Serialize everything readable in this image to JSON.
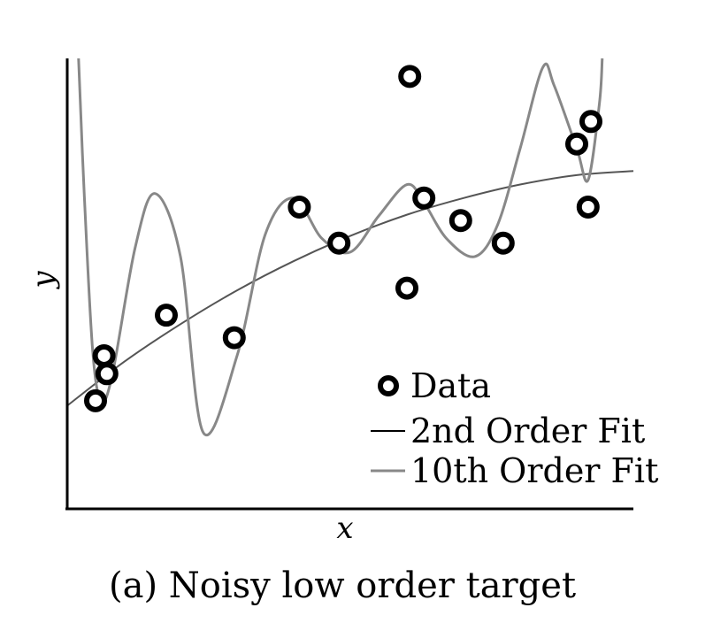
{
  "chart_data": {
    "type": "scatter",
    "title": "",
    "caption": "(a) Noisy low order target",
    "xlabel": "x",
    "ylabel": "y",
    "xlim": [
      0,
      1
    ],
    "ylim": [
      0,
      1
    ],
    "grid": false,
    "legend_placement": "bottom-right",
    "colors": {
      "data_marker": "#000000",
      "fit_2nd": "#555555",
      "fit_10th": "#888888"
    },
    "series": [
      {
        "name": "Data",
        "kind": "markers",
        "points": [
          {
            "x": 0.05,
            "y": 0.24
          },
          {
            "x": 0.065,
            "y": 0.34
          },
          {
            "x": 0.07,
            "y": 0.3
          },
          {
            "x": 0.175,
            "y": 0.43
          },
          {
            "x": 0.295,
            "y": 0.38
          },
          {
            "x": 0.41,
            "y": 0.67
          },
          {
            "x": 0.48,
            "y": 0.59
          },
          {
            "x": 0.6,
            "y": 0.49
          },
          {
            "x": 0.605,
            "y": 0.96
          },
          {
            "x": 0.63,
            "y": 0.69
          },
          {
            "x": 0.695,
            "y": 0.64
          },
          {
            "x": 0.77,
            "y": 0.59
          },
          {
            "x": 0.9,
            "y": 0.81
          },
          {
            "x": 0.92,
            "y": 0.67
          },
          {
            "x": 0.925,
            "y": 0.86
          }
        ]
      },
      {
        "name": "2nd Order Fit",
        "kind": "line",
        "x": [
          0.0,
          0.1,
          0.2,
          0.3,
          0.4,
          0.5,
          0.6,
          0.7,
          0.8,
          0.9,
          1.0
        ],
        "y": [
          0.229,
          0.326,
          0.41,
          0.485,
          0.55,
          0.606,
          0.653,
          0.69,
          0.72,
          0.741,
          0.75
        ]
      },
      {
        "name": "10th Order Fit",
        "kind": "line",
        "x": [
          0.02,
          0.03,
          0.045,
          0.06,
          0.08,
          0.12,
          0.155,
          0.2,
          0.24,
          0.3,
          0.35,
          0.4,
          0.45,
          0.5,
          0.55,
          0.6,
          0.63,
          0.67,
          0.72,
          0.76,
          0.8,
          0.84,
          0.86,
          0.9,
          0.92,
          0.94,
          0.945
        ],
        "y": [
          1.0,
          0.7,
          0.35,
          0.24,
          0.3,
          0.58,
          0.7,
          0.56,
          0.17,
          0.34,
          0.61,
          0.69,
          0.6,
          0.57,
          0.65,
          0.72,
          0.68,
          0.6,
          0.56,
          0.63,
          0.8,
          0.98,
          0.94,
          0.8,
          0.73,
          0.9,
          1.0
        ]
      }
    ],
    "legend": [
      {
        "label": "Data",
        "symbol": "marker"
      },
      {
        "label": "2nd Order Fit",
        "symbol": "line-dark"
      },
      {
        "label": "10th Order Fit",
        "symbol": "line-light"
      }
    ]
  }
}
